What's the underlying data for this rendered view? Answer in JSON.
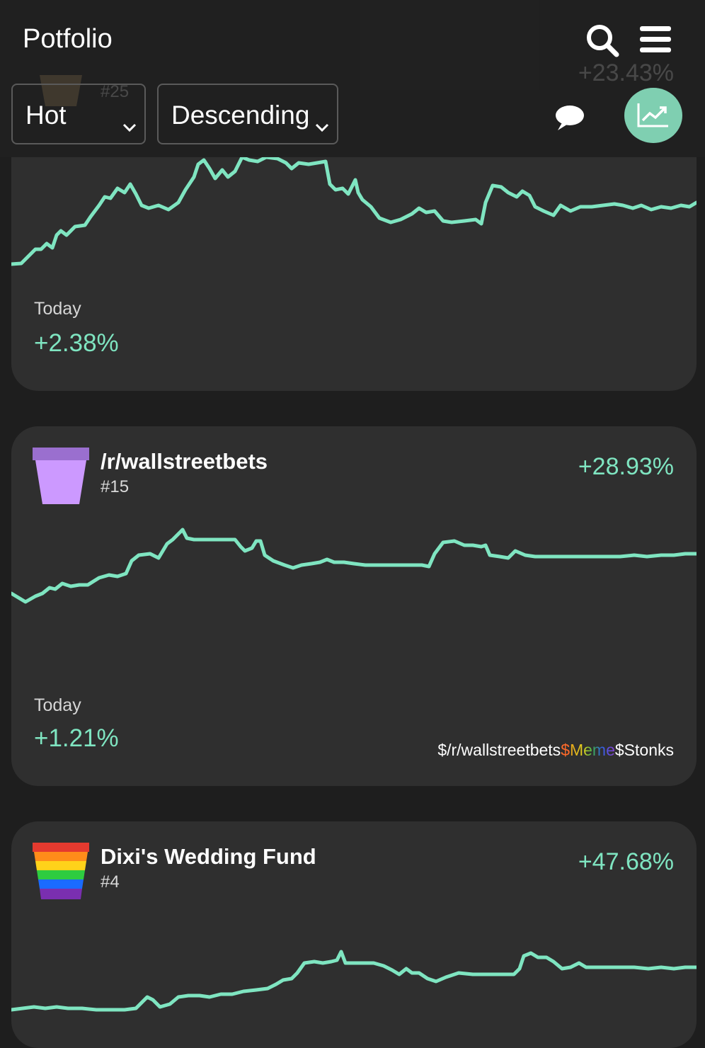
{
  "app": {
    "title": "Potfolio"
  },
  "filters": {
    "sort_by": "Hot",
    "order": "Descending"
  },
  "colors": {
    "accent": "#7fe5c1",
    "card": "#2f2f2f",
    "background": "#1e1e1e"
  },
  "partial_card": {
    "rank": "#25",
    "percent": "+23.43%",
    "today_label": "Today",
    "today_value": "+2.38%"
  },
  "cards": [
    {
      "name": "/r/wallstreetbets",
      "rank": "#15",
      "percent": "+28.93%",
      "today_label": "Today",
      "today_value": "+1.21%",
      "tags": [
        "$/r/wallstreetbets",
        "$Meme",
        "$Stonks"
      ]
    },
    {
      "name": "Dixi's Wedding Fund",
      "rank": "#4",
      "percent": "+47.68%"
    }
  ]
}
